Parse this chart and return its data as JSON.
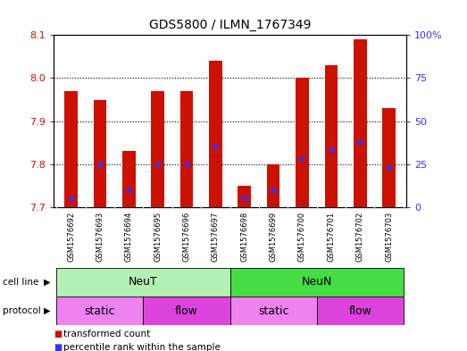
{
  "title": "GDS5800 / ILMN_1767349",
  "samples": [
    "GSM1576692",
    "GSM1576693",
    "GSM1576694",
    "GSM1576695",
    "GSM1576696",
    "GSM1576697",
    "GSM1576698",
    "GSM1576699",
    "GSM1576700",
    "GSM1576701",
    "GSM1576702",
    "GSM1576703"
  ],
  "red_values": [
    7.97,
    7.95,
    7.83,
    7.97,
    7.97,
    8.04,
    7.75,
    7.8,
    8.0,
    8.03,
    8.09,
    7.93
  ],
  "blue_percentiles": [
    5,
    25,
    10,
    25,
    25,
    35,
    5,
    10,
    28,
    33,
    38,
    23
  ],
  "ylim_left": [
    7.7,
    8.1
  ],
  "ylim_right": [
    0,
    100
  ],
  "yticks_left": [
    7.7,
    7.8,
    7.9,
    8.0,
    8.1
  ],
  "yticks_right": [
    0,
    25,
    50,
    75,
    100
  ],
  "cell_line_groups": [
    {
      "label": "NeuT",
      "start": 0,
      "end": 6,
      "color": "#b3f0b3"
    },
    {
      "label": "NeuN",
      "start": 6,
      "end": 12,
      "color": "#44dd44"
    }
  ],
  "protocol_groups": [
    {
      "label": "static",
      "start": 0,
      "end": 3,
      "color": "#ee82ee"
    },
    {
      "label": "flow",
      "start": 3,
      "end": 6,
      "color": "#dd44dd"
    },
    {
      "label": "static",
      "start": 6,
      "end": 9,
      "color": "#ee82ee"
    },
    {
      "label": "flow",
      "start": 9,
      "end": 12,
      "color": "#dd44dd"
    }
  ],
  "bar_color": "#cc1100",
  "blue_color": "#3333ff",
  "bar_width": 0.45,
  "bg_color": "#ffffff",
  "sample_bg_color": "#d4d4d4",
  "left_tick_color": "#cc1100",
  "right_tick_color": "#3333ff",
  "legend_items": [
    {
      "label": "transformed count",
      "color": "#cc1100"
    },
    {
      "label": "percentile rank within the sample",
      "color": "#3333ff"
    }
  ],
  "fig_width": 5.23,
  "fig_height": 3.93,
  "fig_dpi": 100
}
